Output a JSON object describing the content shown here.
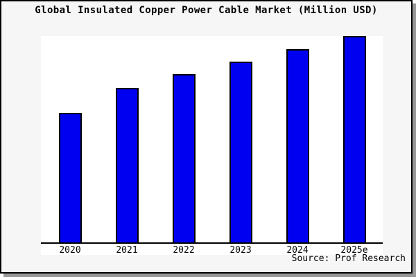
{
  "title": "Global Insulated Copper Power Cable Market (Million USD)",
  "source": "Source: Prof Research",
  "colors": {
    "bar_fill": "#0000f0",
    "bar_border": "#000000",
    "plot_background": "#ffffff",
    "card_background": "#f6f6f6",
    "axis": "#000000",
    "card_border": "#000000",
    "card_shadow": "#98989b"
  },
  "chart_data": {
    "type": "bar",
    "title": "Global Insulated Copper Power Cable Market (Million USD)",
    "categories": [
      "2020",
      "2021",
      "2022",
      "2023",
      "2024",
      "2025e"
    ],
    "values": [
      63,
      75,
      81.5,
      87.7,
      93.7,
      100
    ],
    "value_note": "no y-axis ticks shown; values estimated as percent of tallest (2025e) bar",
    "xlabel": "",
    "ylabel": "",
    "ylim": [
      0,
      100
    ],
    "grid": false,
    "legend": false,
    "source": "Source: Prof Research"
  }
}
